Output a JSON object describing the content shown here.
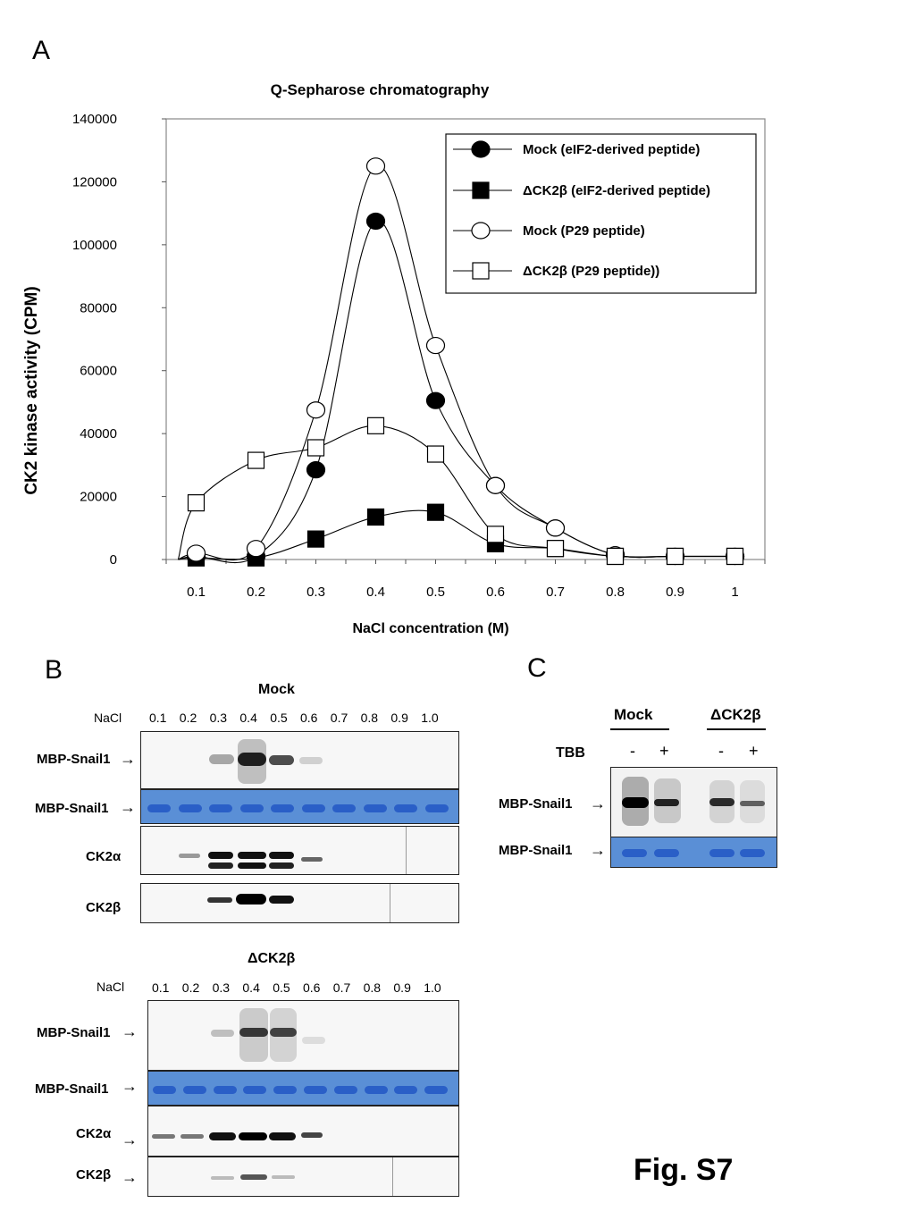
{
  "panelA": {
    "letter": "A",
    "chart_data": {
      "type": "line",
      "title": "Q-Sepharose chromatography",
      "xlabel": "NaCl concentration (M)",
      "ylabel": "CK2 kinase activity (CPM)",
      "x": [
        0.1,
        0.2,
        0.3,
        0.4,
        0.5,
        0.6,
        0.7,
        0.8,
        0.9,
        1
      ],
      "x_tick_labels": [
        "0.1",
        "0.2",
        "0.3",
        "0.4",
        "0.5",
        "0.6",
        "0.7",
        "0.8",
        "0.9",
        "1"
      ],
      "y_tick_labels": [
        "0",
        "20000",
        "40000",
        "60000",
        "80000",
        "100000",
        "120000",
        "140000"
      ],
      "ylim": [
        0,
        140000
      ],
      "xlim": [
        0.05,
        1.05
      ],
      "grid": false,
      "legend_position": "top-right",
      "series": [
        {
          "name": "Mock (eIF2-derived peptide)",
          "marker": "filled-circle",
          "x": [
            0.1,
            0.2,
            0.3,
            0.4,
            0.5,
            0.6,
            0.7,
            0.8,
            0.9,
            1
          ],
          "values": [
            1000,
            1000,
            28500,
            107500,
            50500,
            23500,
            10000,
            1500,
            1000,
            1000
          ]
        },
        {
          "name": "ΔCK2β (eIF2-derived peptide)",
          "marker": "filled-square",
          "x": [
            0.1,
            0.2,
            0.3,
            0.4,
            0.5,
            0.6,
            0.7,
            0.8,
            0.9,
            1
          ],
          "values": [
            500,
            500,
            6500,
            13500,
            15000,
            5000,
            3500,
            1000,
            1000,
            1000
          ]
        },
        {
          "name": "Mock (P29 peptide)",
          "marker": "open-circle",
          "x": [
            0.1,
            0.2,
            0.3,
            0.4,
            0.5,
            0.6,
            0.7,
            0.8,
            0.9,
            1
          ],
          "values": [
            2000,
            3500,
            47500,
            125000,
            68000,
            23500,
            10000,
            1500,
            1000,
            1000
          ]
        },
        {
          "name": "ΔCK2β (P29 peptide))",
          "marker": "open-square",
          "x": [
            0.1,
            0.2,
            0.3,
            0.4,
            0.5,
            0.6,
            0.7,
            0.8,
            0.9,
            1
          ],
          "values": [
            18000,
            31500,
            35500,
            42500,
            33500,
            8000,
            3500,
            1000,
            1000,
            1000
          ]
        }
      ]
    }
  },
  "panelB": {
    "letter": "B",
    "mock_title": "Mock",
    "dck2b_title": "ΔCK2β",
    "nacl_label": "NaCl",
    "lanes": [
      "0.1",
      "0.2",
      "0.3",
      "0.4",
      "0.5",
      "0.6",
      "0.7",
      "0.8",
      "0.9",
      "1.0"
    ],
    "row_labels": {
      "mbp1": "MBP-Snail1",
      "mbp2": "MBP-Snail1",
      "ck2a": "CK2α",
      "ck2b": "CK2β"
    }
  },
  "panelC": {
    "letter": "C",
    "mock": "Mock",
    "dck2b": "ΔCK2β",
    "tbb": "TBB",
    "minus": "-",
    "plus": "+",
    "row1": "MBP-Snail1",
    "row2": "MBP-Snail1"
  },
  "figure_label": "Fig. S7",
  "colors": {
    "coomassie": "#5a8fd6",
    "band": "#111111"
  }
}
